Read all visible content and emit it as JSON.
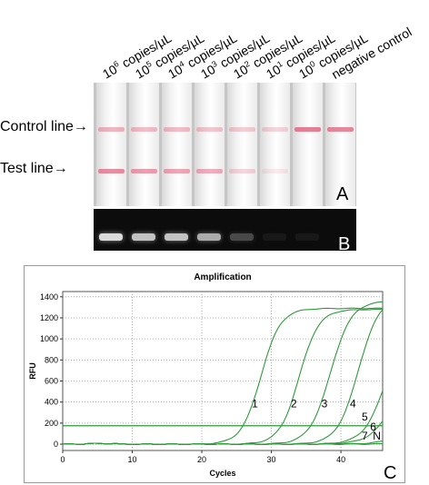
{
  "panel_a": {
    "concentration_labels": [
      {
        "base": "10",
        "exp": "6",
        "unit": " copies/µL"
      },
      {
        "base": "10",
        "exp": "5",
        "unit": " copies/µL"
      },
      {
        "base": "10",
        "exp": "4",
        "unit": " copies/µL"
      },
      {
        "base": "10",
        "exp": "3",
        "unit": " copies/µL"
      },
      {
        "base": "10",
        "exp": "2",
        "unit": " copies/µL"
      },
      {
        "base": "10",
        "exp": "1",
        "unit": " copies/µL"
      },
      {
        "base": "10",
        "exp": "0",
        "unit": " copies/µL"
      },
      {
        "base": "negative control",
        "exp": "",
        "unit": ""
      }
    ],
    "control_line_label": "Control line→",
    "test_line_label": "Test line→",
    "control_band_intensity": [
      0.45,
      0.4,
      0.4,
      0.35,
      0.3,
      0.25,
      0.8,
      0.75
    ],
    "test_band_intensity": [
      0.7,
      0.6,
      0.55,
      0.5,
      0.25,
      0.12,
      0.0,
      0.0
    ],
    "band_color": "#e0607a",
    "letter": "A"
  },
  "panel_b": {
    "letter": "B",
    "band_intensity": [
      0.85,
      0.75,
      0.75,
      0.65,
      0.25,
      0.05,
      0.05,
      0.0
    ]
  },
  "panel_c": {
    "letter": "C",
    "chart_data": {
      "type": "line",
      "title": "Amplification",
      "xlabel": "Cycles",
      "ylabel": "RFU",
      "xlim": [
        0,
        46
      ],
      "ylim": [
        -60,
        1450
      ],
      "x_ticks": [
        0,
        10,
        20,
        30,
        40
      ],
      "y_ticks": [
        0,
        200,
        400,
        600,
        800,
        1000,
        1200,
        1400
      ],
      "grid": true,
      "line_color": "#2e9a3a",
      "threshold": 175,
      "series": [
        {
          "name": "1",
          "midpoint": 28.5,
          "plateau": 1290,
          "slope": 1.4
        },
        {
          "name": "2",
          "midpoint": 34.0,
          "plateau": 1280,
          "slope": 1.4
        },
        {
          "name": "3",
          "midpoint": 38.5,
          "plateau": 1360,
          "slope": 1.5
        },
        {
          "name": "4",
          "midpoint": 42.5,
          "plateau": 1400,
          "slope": 1.5
        },
        {
          "name": "5",
          "midpoint": 46.5,
          "plateau": 1200,
          "slope": 1.6
        },
        {
          "name": "6",
          "midpoint": 48.5,
          "plateau": 1100,
          "slope": 1.8
        },
        {
          "name": "7",
          "midpoint": 53.0,
          "plateau": 1000,
          "slope": 2.0
        },
        {
          "name": "N",
          "midpoint": 60.0,
          "plateau": 800,
          "slope": 2.5
        }
      ],
      "series_labels": [
        {
          "text": "1",
          "x": 27.2,
          "y": 350
        },
        {
          "text": "2",
          "x": 32.8,
          "y": 350
        },
        {
          "text": "3",
          "x": 37.2,
          "y": 350
        },
        {
          "text": "4",
          "x": 41.3,
          "y": 350
        },
        {
          "text": "5",
          "x": 43.0,
          "y": 225
        },
        {
          "text": "6",
          "x": 44.2,
          "y": 130
        },
        {
          "text": "7",
          "x": 43.0,
          "y": 45
        },
        {
          "text": "N",
          "x": 44.6,
          "y": 45
        }
      ]
    }
  }
}
